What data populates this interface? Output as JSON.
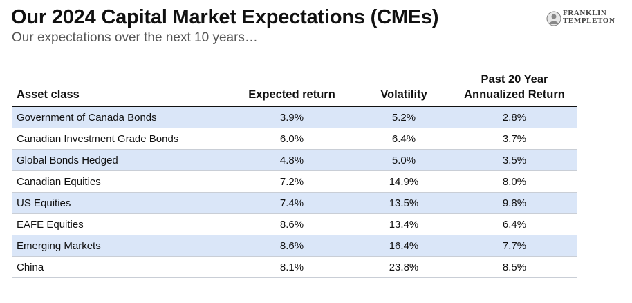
{
  "header": {
    "title": "Our 2024 Capital Market Expectations (CMEs)",
    "subtitle": "Our expectations over the next 10 years…"
  },
  "logo": {
    "line1": "FRANKLIN",
    "line2": "TEMPLETON"
  },
  "table": {
    "columns": {
      "asset": "Asset class",
      "expected": "Expected return",
      "volatility": "Volatility",
      "past_line1": "Past 20 Year",
      "past_line2": "Annualized Return"
    },
    "rows": [
      {
        "asset": "Government of Canada Bonds",
        "expected": "3.9%",
        "volatility": "5.2%",
        "past": "2.8%"
      },
      {
        "asset": "Canadian Investment Grade Bonds",
        "expected": "6.0%",
        "volatility": "6.4%",
        "past": "3.7%"
      },
      {
        "asset": "Global Bonds Hedged",
        "expected": "4.8%",
        "volatility": "5.0%",
        "past": "3.5%"
      },
      {
        "asset": "Canadian Equities",
        "expected": "7.2%",
        "volatility": "14.9%",
        "past": "8.0%"
      },
      {
        "asset": "US Equities",
        "expected": "7.4%",
        "volatility": "13.5%",
        "past": "9.8%"
      },
      {
        "asset": "EAFE Equities",
        "expected": "8.6%",
        "volatility": "13.4%",
        "past": "6.4%"
      },
      {
        "asset": "Emerging Markets",
        "expected": "8.6%",
        "volatility": "16.4%",
        "past": "7.7%"
      },
      {
        "asset": "China",
        "expected": "8.1%",
        "volatility": "23.8%",
        "past": "8.5%"
      }
    ]
  },
  "colors": {
    "row_shade": "#dae6f8",
    "header_rule": "#111111",
    "subtitle": "#555555"
  }
}
